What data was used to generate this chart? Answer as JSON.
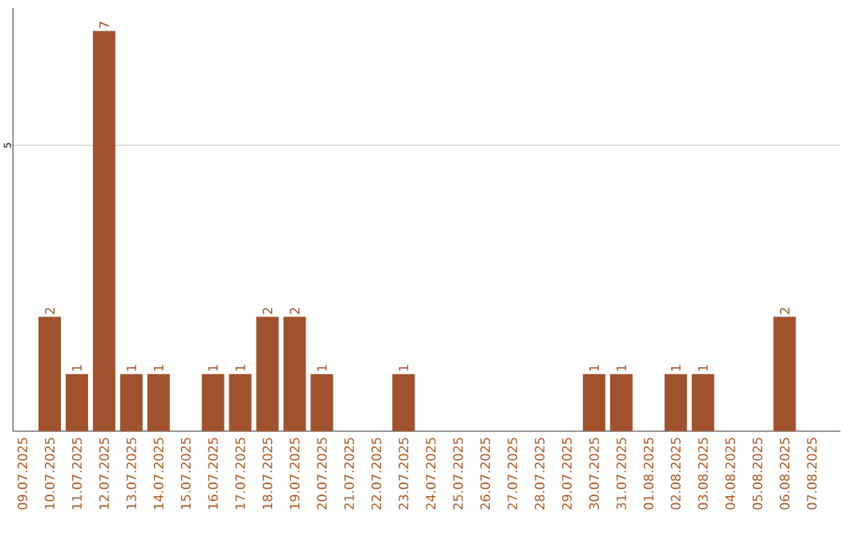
{
  "chart_data": {
    "type": "bar",
    "categories": [
      "09.07.2025",
      "10.07.2025",
      "11.07.2025",
      "12.07.2025",
      "13.07.2025",
      "14.07.2025",
      "15.07.2025",
      "16.07.2025",
      "17.07.2025",
      "18.07.2025",
      "19.07.2025",
      "20.07.2025",
      "21.07.2025",
      "22.07.2025",
      "23.07.2025",
      "24.07.2025",
      "25.07.2025",
      "26.07.2025",
      "27.07.2025",
      "28.07.2025",
      "29.07.2025",
      "30.07.2025",
      "31.07.2025",
      "01.08.2025",
      "02.08.2025",
      "03.08.2025",
      "04.08.2025",
      "05.08.2025",
      "06.08.2025",
      "07.08.2025"
    ],
    "values": [
      0,
      2,
      1,
      7,
      1,
      1,
      0,
      1,
      1,
      2,
      2,
      1,
      0,
      0,
      1,
      0,
      0,
      0,
      0,
      0,
      0,
      1,
      1,
      0,
      1,
      1,
      0,
      0,
      2,
      0
    ],
    "value_labels": [
      null,
      "2",
      "1",
      "7",
      "1",
      "1",
      null,
      "1",
      "1",
      "2",
      "2",
      "1",
      null,
      null,
      "1",
      null,
      null,
      null,
      null,
      null,
      null,
      "1",
      "1",
      null,
      "1",
      "1",
      null,
      null,
      "2",
      null
    ],
    "color": "#a0522d",
    "ylim": [
      0,
      7.4
    ],
    "yticks": [
      5
    ],
    "grid": "y"
  }
}
